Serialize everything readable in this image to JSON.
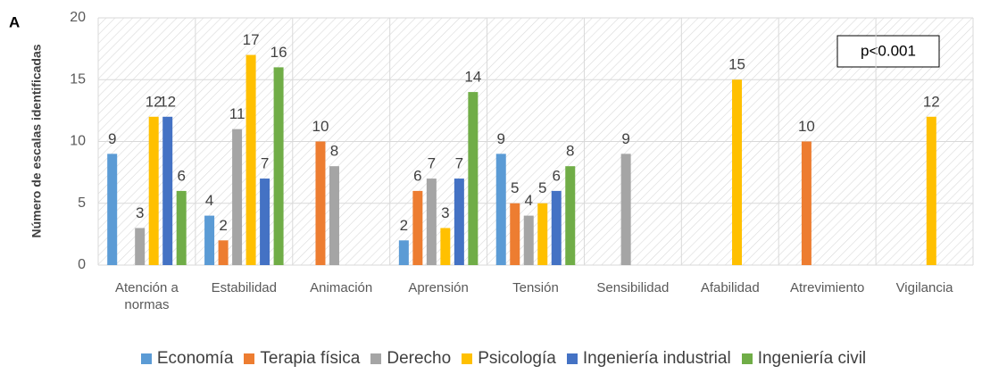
{
  "chart_data": {
    "type": "bar",
    "panel_label": "A",
    "annotation": "p<0.001",
    "y_label": "Número de escalas identificadas",
    "categories": [
      "Atención a normas",
      "Estabilidad",
      "Animación",
      "Aprensión",
      "Tensión",
      "Sensibilidad",
      "Afabilidad",
      "Atrevimiento",
      "Vigilancia"
    ],
    "series": [
      {
        "name": "Economía",
        "color": "#5b9bd5",
        "values": [
          9,
          4,
          null,
          2,
          9,
          null,
          null,
          null,
          null
        ]
      },
      {
        "name": "Terapia física",
        "color": "#ed7d31",
        "values": [
          null,
          2,
          10,
          6,
          5,
          null,
          null,
          10,
          null
        ]
      },
      {
        "name": "Derecho",
        "color": "#a5a5a5",
        "values": [
          3,
          11,
          8,
          7,
          4,
          9,
          null,
          null,
          null
        ]
      },
      {
        "name": "Psicología",
        "color": "#ffc000",
        "values": [
          12,
          17,
          null,
          3,
          5,
          null,
          15,
          null,
          12
        ]
      },
      {
        "name": "Ingeniería industrial",
        "color": "#4472c4",
        "values": [
          12,
          7,
          null,
          7,
          6,
          null,
          null,
          null,
          null
        ]
      },
      {
        "name": "Ingeniería civil",
        "color": "#70ad47",
        "values": [
          6,
          16,
          null,
          14,
          8,
          null,
          null,
          null,
          null
        ]
      }
    ],
    "ylim": [
      0,
      20
    ],
    "yticks": [
      0,
      5,
      10,
      15,
      20
    ],
    "grid": true,
    "legend": "bottom"
  }
}
